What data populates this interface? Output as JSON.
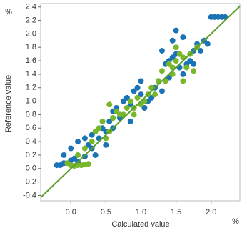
{
  "chart_data": {
    "type": "scatter",
    "x_label": "Calculated value",
    "y_label": "Reference value",
    "x_unit": "%",
    "y_unit": "%",
    "xlim": [
      -0.43,
      2.41
    ],
    "ylim": [
      -0.48,
      2.45
    ],
    "xticks": [
      {
        "value": 0,
        "label": "0.0"
      },
      0.5,
      {
        "value": 1,
        "label": "1.0"
      },
      1.5,
      {
        "value": 2,
        "label": "2.0"
      }
    ],
    "yticks": [
      -0.4,
      -0.2,
      {
        "value": 0,
        "label": "0.0"
      },
      0.2,
      0.4,
      0.6,
      0.8,
      {
        "value": 1,
        "label": "1.0"
      },
      1.2,
      1.4,
      1.6,
      1.8,
      {
        "value": 2,
        "label": "2.0"
      },
      2.2,
      2.4
    ],
    "reference_line": {
      "color": "#5a9e2a",
      "x": [
        -0.43,
        2.41
      ],
      "y": [
        -0.43,
        2.41
      ]
    },
    "series": [
      {
        "color": "#1a73b4",
        "x": [
          -0.2,
          -0.15,
          -0.1,
          0.0,
          0.05,
          0.1,
          0.2,
          0.25,
          0.3,
          -0.1,
          0.0,
          0.1,
          0.2,
          0.3,
          0.35,
          0.4,
          0.45,
          0.5,
          0.55,
          0.6,
          0.6,
          0.65,
          0.7,
          0.75,
          0.8,
          0.85,
          0.9,
          0.95,
          1.0,
          1.0,
          1.05,
          1.1,
          1.15,
          1.2,
          1.25,
          1.3,
          1.35,
          1.4,
          1.45,
          1.5,
          1.55,
          1.6,
          1.65,
          1.7,
          1.75,
          1.8,
          1.85,
          1.9,
          1.95,
          1.6,
          1.5,
          1.45,
          1.3,
          2.0,
          2.05,
          2.1,
          2.15,
          2.2,
          1.4,
          0.85,
          0.5,
          1.75
        ],
        "y": [
          0.05,
          0.05,
          0.08,
          0.12,
          0.15,
          0.1,
          0.18,
          0.35,
          0.3,
          0.2,
          0.3,
          0.4,
          0.45,
          0.5,
          0.2,
          0.45,
          0.6,
          0.55,
          0.7,
          0.6,
          0.85,
          0.9,
          0.75,
          1.0,
          1.05,
          0.95,
          1.15,
          1.2,
          1.1,
          1.3,
          0.9,
          1.0,
          1.05,
          1.2,
          1.3,
          1.15,
          1.55,
          1.6,
          1.65,
          1.7,
          1.5,
          1.4,
          1.55,
          1.6,
          1.75,
          1.85,
          1.75,
          1.9,
          1.85,
          1.95,
          2.05,
          1.9,
          1.75,
          2.25,
          2.25,
          2.25,
          2.25,
          2.25,
          1.35,
          0.7,
          0.35,
          1.55
        ]
      },
      {
        "color": "#79b62c",
        "x": [
          0.0,
          0.05,
          0.1,
          0.15,
          0.2,
          0.25,
          -0.05,
          0.1,
          0.2,
          0.3,
          0.35,
          0.4,
          0.45,
          0.5,
          0.55,
          0.6,
          0.65,
          0.7,
          0.75,
          0.8,
          0.85,
          0.9,
          0.95,
          1.0,
          1.05,
          1.1,
          1.15,
          1.2,
          1.25,
          1.3,
          1.35,
          1.4,
          1.45,
          1.5,
          1.55,
          1.6,
          1.65,
          1.7,
          1.75,
          1.5,
          1.45,
          1.6,
          1.8,
          0.55,
          0.9
        ],
        "y": [
          0.05,
          0.04,
          0.05,
          0.05,
          0.06,
          0.07,
          0.08,
          0.2,
          0.3,
          0.4,
          0.55,
          0.6,
          0.7,
          0.45,
          0.55,
          0.75,
          0.85,
          0.8,
          0.8,
          0.9,
          1.0,
          0.9,
          1.05,
          0.95,
          1.0,
          1.1,
          1.2,
          1.1,
          1.3,
          1.45,
          1.3,
          1.55,
          1.5,
          1.6,
          1.7,
          1.65,
          1.5,
          1.7,
          1.45,
          1.8,
          1.4,
          1.3,
          1.8,
          0.95,
          0.8
        ]
      }
    ]
  }
}
